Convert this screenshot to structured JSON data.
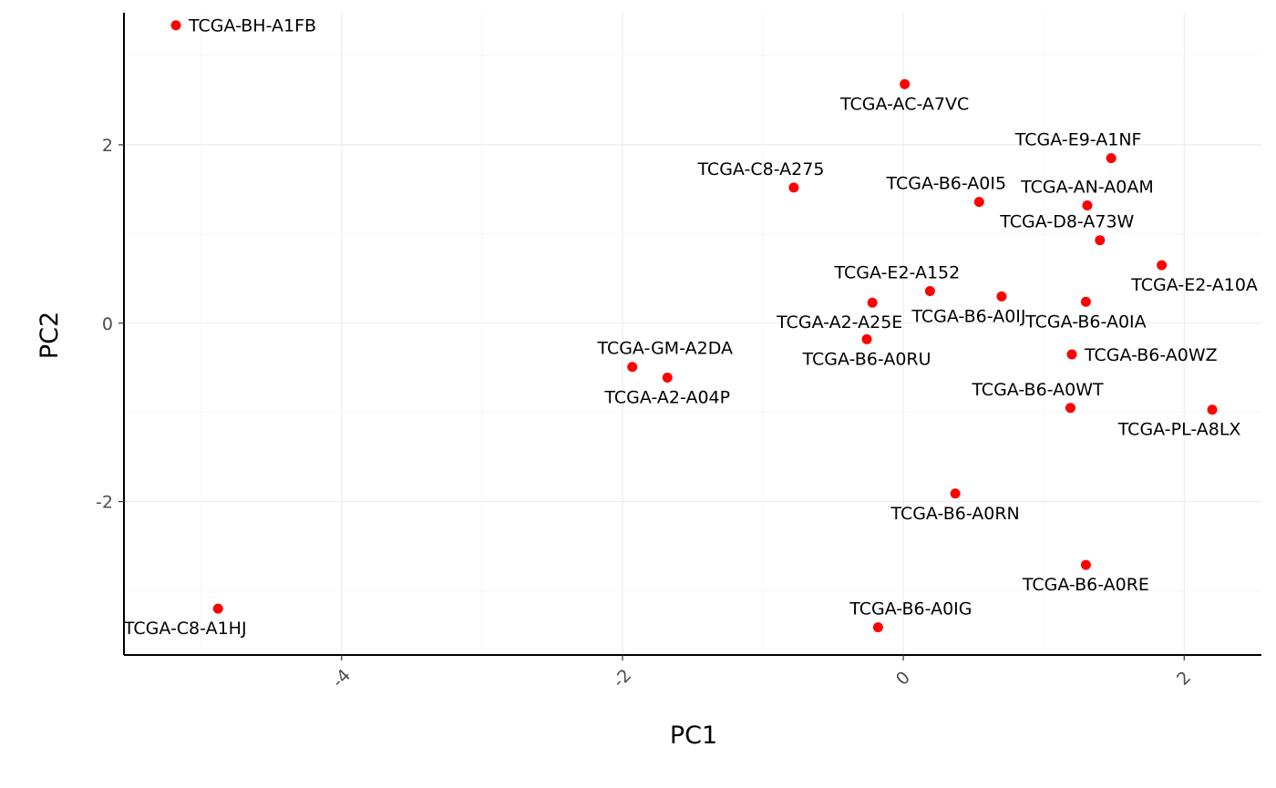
{
  "chart_data": {
    "type": "scatter",
    "title": "",
    "xlabel": "PC1",
    "ylabel": "PC2",
    "xlim": [
      -5.55,
      2.55
    ],
    "ylim": [
      -3.72,
      3.48
    ],
    "x_ticks": [
      -4,
      -2,
      0,
      2
    ],
    "x_tick_labels": [
      "-4",
      "-2",
      "0",
      "2"
    ],
    "y_ticks": [
      -2,
      0,
      2
    ],
    "y_tick_labels": [
      "-2",
      "0",
      "2"
    ],
    "grid": true,
    "legend": "none",
    "point_color": "#ff0000",
    "points": [
      {
        "label": "TCGA-BH-A1FB",
        "x": -5.18,
        "y": 3.34,
        "label_pos": "right"
      },
      {
        "label": "TCGA-AC-A7VC",
        "x": 0.01,
        "y": 2.68,
        "label_pos": "below"
      },
      {
        "label": "TCGA-E9-A1NF",
        "x": 1.48,
        "y": 1.85,
        "label_pos": "above-left"
      },
      {
        "label": "TCGA-C8-A275",
        "x": -0.78,
        "y": 1.52,
        "label_pos": "above-left"
      },
      {
        "label": "TCGA-B6-A0I5",
        "x": 0.54,
        "y": 1.36,
        "label_pos": "above-left"
      },
      {
        "label": "TCGA-AN-A0AM",
        "x": 1.31,
        "y": 1.32,
        "label_pos": "above"
      },
      {
        "label": "TCGA-D8-A73W",
        "x": 1.4,
        "y": 0.93,
        "label_pos": "above-left"
      },
      {
        "label": "TCGA-E2-A10A",
        "x": 1.84,
        "y": 0.65,
        "label_pos": "below-right"
      },
      {
        "label": "TCGA-E2-A152",
        "x": 0.19,
        "y": 0.36,
        "label_pos": "above-left"
      },
      {
        "label": "TCGA-B6-A0IJ",
        "x": 0.7,
        "y": 0.3,
        "label_pos": "below-left"
      },
      {
        "label": "TCGA-A2-A25E",
        "x": -0.22,
        "y": 0.23,
        "label_pos": "below-left"
      },
      {
        "label": "TCGA-B6-A0IA",
        "x": 1.3,
        "y": 0.24,
        "label_pos": "below"
      },
      {
        "label": "TCGA-B6-A0RU",
        "x": -0.26,
        "y": -0.18,
        "label_pos": "below"
      },
      {
        "label": "TCGA-B6-A0WZ",
        "x": 1.2,
        "y": -0.35,
        "label_pos": "right"
      },
      {
        "label": "TCGA-GM-A2DA",
        "x": -1.93,
        "y": -0.49,
        "label_pos": "above-right"
      },
      {
        "label": "TCGA-A2-A04P",
        "x": -1.68,
        "y": -0.61,
        "label_pos": "below"
      },
      {
        "label": "TCGA-B6-A0WT",
        "x": 1.19,
        "y": -0.95,
        "label_pos": "above-left"
      },
      {
        "label": "TCGA-PL-A8LX",
        "x": 2.2,
        "y": -0.97,
        "label_pos": "below-left"
      },
      {
        "label": "TCGA-B6-A0RN",
        "x": 0.37,
        "y": -1.91,
        "label_pos": "below"
      },
      {
        "label": "TCGA-B6-A0RE",
        "x": 1.3,
        "y": -2.71,
        "label_pos": "below"
      },
      {
        "label": "TCGA-C8-A1HJ",
        "x": -4.88,
        "y": -3.2,
        "label_pos": "below-left"
      },
      {
        "label": "TCGA-B6-A0IG",
        "x": -0.18,
        "y": -3.41,
        "label_pos": "above-right"
      }
    ]
  }
}
